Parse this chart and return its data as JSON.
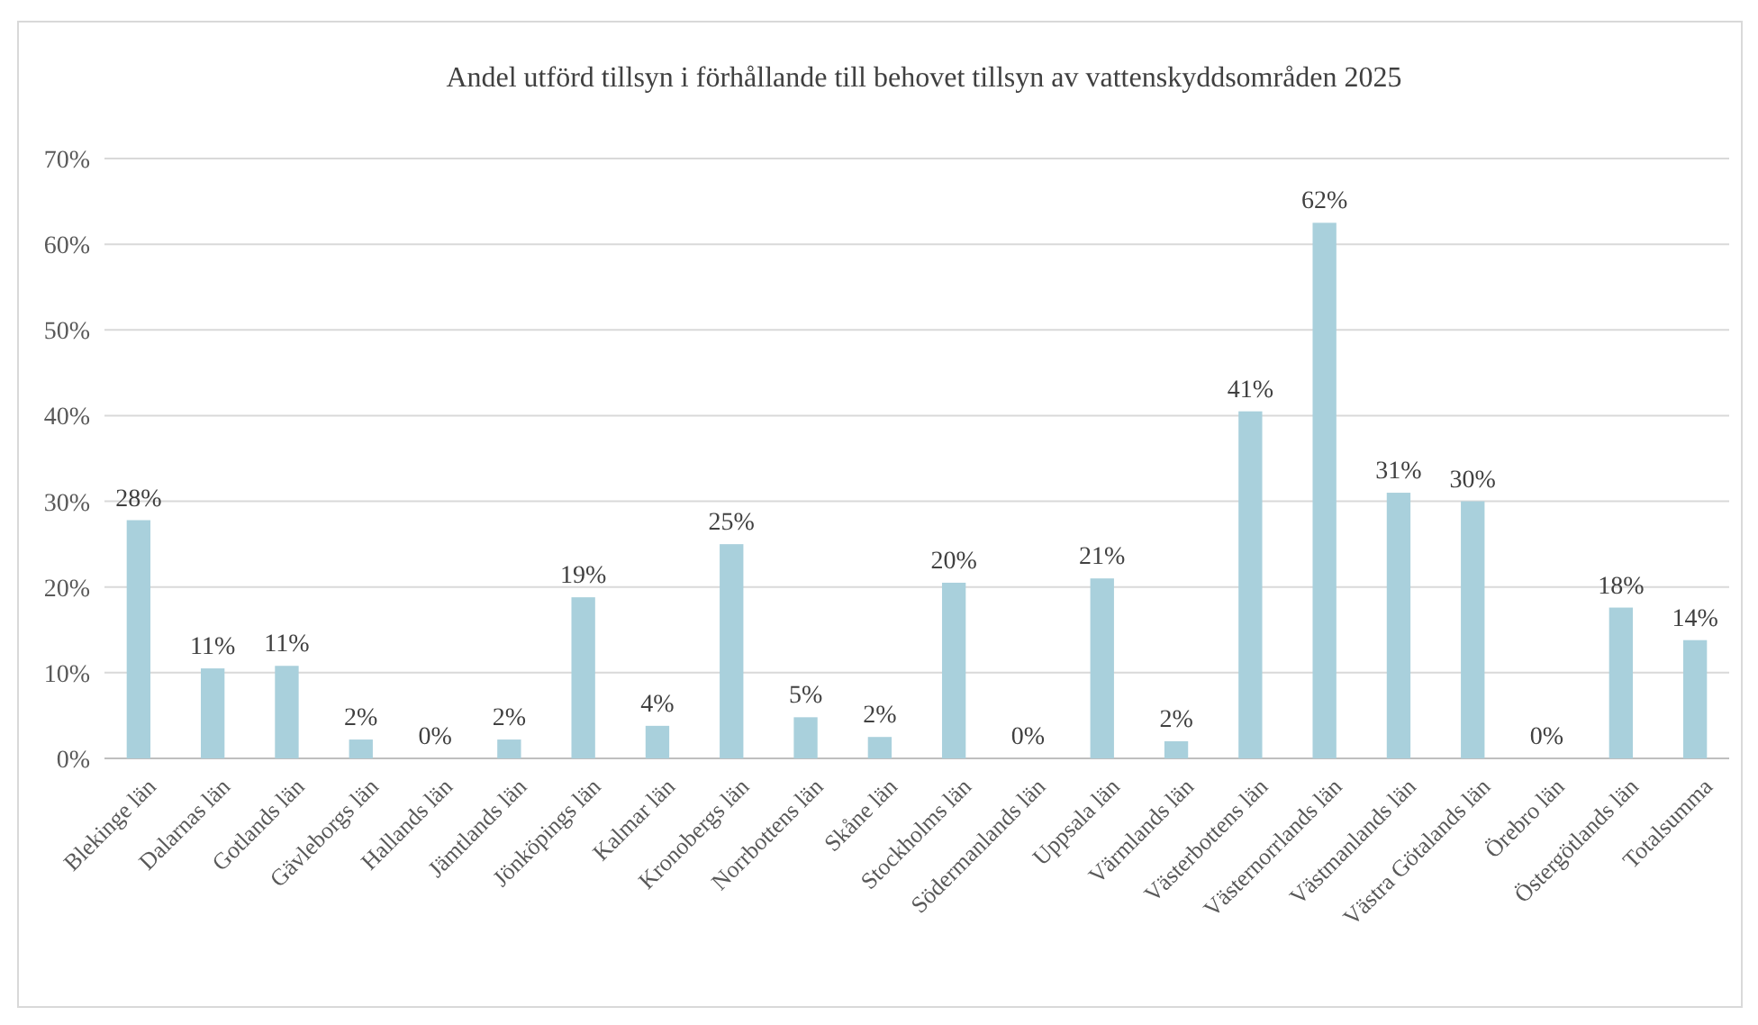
{
  "chart_data": {
    "type": "bar",
    "title": "Andel utförd tillsyn i förhållande till behovet tillsyn av vattenskyddsområden 2025",
    "categories": [
      "Blekinge län",
      "Dalarnas län",
      "Gotlands län",
      "Gävleborgs län",
      "Hallands län",
      "Jämtlands län",
      "Jönköpings län",
      "Kalmar län",
      "Kronobergs län",
      "Norrbottens län",
      "Skåne län",
      "Stockholms län",
      "Södermanlands län",
      "Uppsala län",
      "Värmlands län",
      "Västerbottens län",
      "Västernorrlands län",
      "Västmanlands län",
      "Västra Götalands län",
      "Örebro län",
      "Östergötlands län",
      "Totalsumma"
    ],
    "values": [
      27.8,
      10.5,
      10.8,
      2.2,
      0,
      2.2,
      18.8,
      3.8,
      25,
      4.8,
      2.5,
      20.5,
      0,
      21,
      2,
      40.5,
      62.5,
      31,
      30,
      0,
      17.6,
      13.8
    ],
    "value_labels": [
      "28%",
      "11%",
      "11%",
      "2%",
      "0%",
      "2%",
      "19%",
      "4%",
      "25%",
      "5%",
      "2%",
      "20%",
      "0%",
      "21%",
      "2%",
      "41%",
      "62%",
      "31%",
      "30%",
      "0%",
      "18%",
      "14%"
    ],
    "color": "#a9d0dc",
    "ylim": [
      0,
      70
    ],
    "yticks": [
      {
        "value": 0,
        "label": "0%"
      },
      {
        "value": 10,
        "label": "10%"
      },
      {
        "value": 20,
        "label": "20%"
      },
      {
        "value": 30,
        "label": "30%"
      },
      {
        "value": 40,
        "label": "40%"
      },
      {
        "value": 50,
        "label": "50%"
      },
      {
        "value": 60,
        "label": "60%"
      },
      {
        "value": 70,
        "label": "70%"
      }
    ],
    "grid": "y"
  }
}
